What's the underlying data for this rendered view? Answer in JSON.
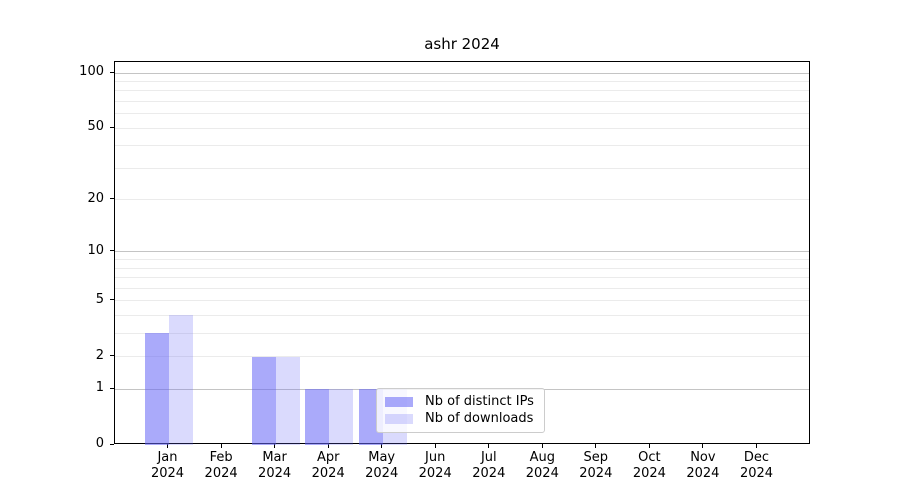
{
  "chart_data": {
    "type": "bar",
    "title": "ashr 2024",
    "categories": [
      "Jan",
      "Feb",
      "Mar",
      "Apr",
      "May",
      "Jun",
      "Jul",
      "Aug",
      "Sep",
      "Oct",
      "Nov",
      "Dec"
    ],
    "category_year": "2024",
    "series": [
      {
        "name": "Nb of distinct IPs",
        "color": "rgba(100,100,245,0.55)",
        "values": [
          3,
          0,
          2,
          1,
          1,
          0,
          0,
          0,
          0,
          0,
          0,
          0
        ]
      },
      {
        "name": "Nb of downloads",
        "color": "rgba(100,100,245,0.24)",
        "values": [
          4,
          0,
          2,
          1,
          1,
          0,
          0,
          0,
          0,
          0,
          0,
          0
        ]
      }
    ],
    "yscale": "log1p",
    "ylim": [
      0,
      115
    ],
    "y_ticks": [
      0,
      1,
      2,
      5,
      10,
      20,
      50,
      100
    ],
    "y_major_gridlines": [
      1,
      10,
      100
    ],
    "y_minor_gridlines": [
      2,
      3,
      4,
      5,
      6,
      7,
      8,
      9,
      20,
      30,
      40,
      50,
      60,
      70,
      80,
      90
    ],
    "grid": true,
    "legend_position": "lower center"
  },
  "colors": {
    "major_grid": "#c4c4c4",
    "minor_grid": "#ebebeb",
    "axis": "#000000",
    "background": "#ffffff"
  }
}
